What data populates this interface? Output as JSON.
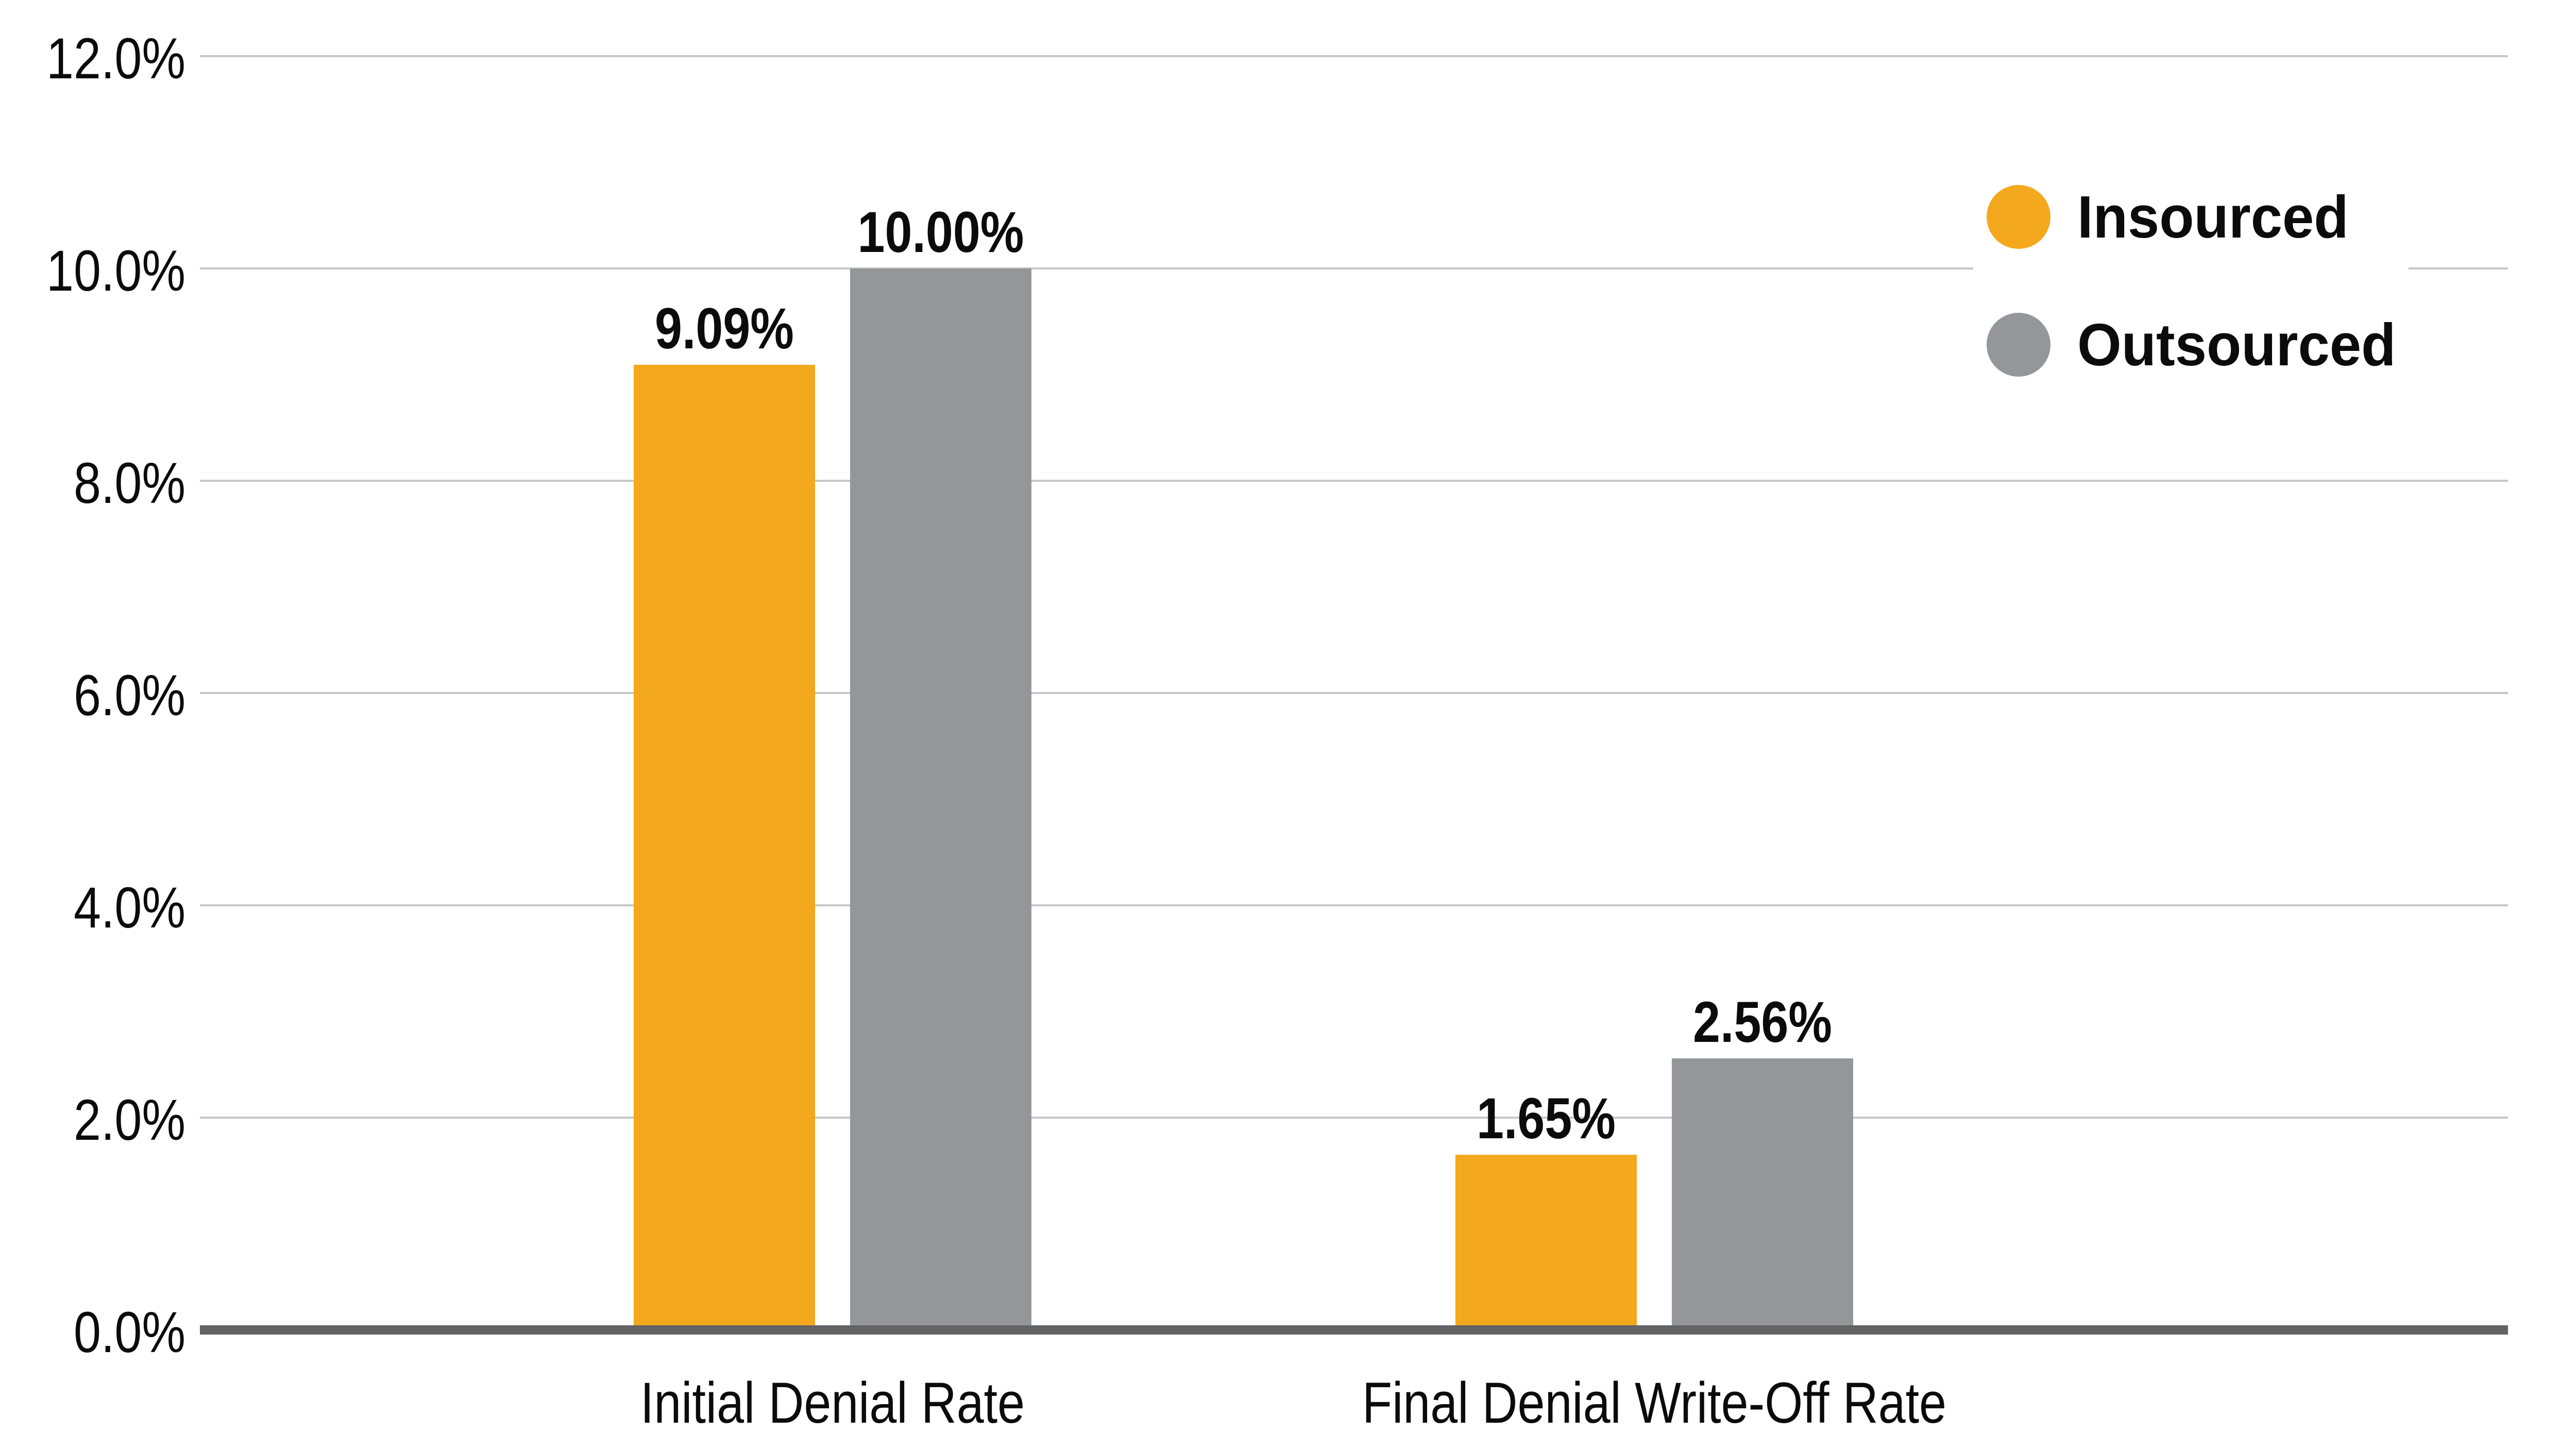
{
  "chart_data": {
    "type": "bar",
    "title": "",
    "xlabel": "",
    "ylabel": "",
    "categories": [
      "Initial Denial Rate",
      "Final Denial Write-Off Rate"
    ],
    "series": [
      {
        "name": "Insourced",
        "color": "#F4A81D",
        "values": [
          9.09,
          1.65
        ],
        "labels": [
          "9.09%",
          "1.65%"
        ]
      },
      {
        "name": "Outsourced",
        "color": "#95969A",
        "values": [
          10.0,
          2.56
        ],
        "labels": [
          "10.00%",
          "2.56%"
        ]
      }
    ],
    "ylim": [
      0,
      12
    ],
    "y_ticks": [
      {
        "value": 12,
        "label": "12.0%"
      },
      {
        "value": 10,
        "label": "10.0%"
      },
      {
        "value": 8,
        "label": "8.0%"
      },
      {
        "value": 6,
        "label": "6.0%"
      },
      {
        "value": 4,
        "label": "4.0%"
      },
      {
        "value": 2,
        "label": "2.0%"
      },
      {
        "value": 0,
        "label": "0.0%"
      }
    ],
    "grid": true,
    "legend_position": "top-right",
    "colors": {
      "gridline": "#C7C7C7",
      "axis_line": "#636366",
      "text": "#0B0B0B",
      "background": "#FFFFFF"
    }
  }
}
